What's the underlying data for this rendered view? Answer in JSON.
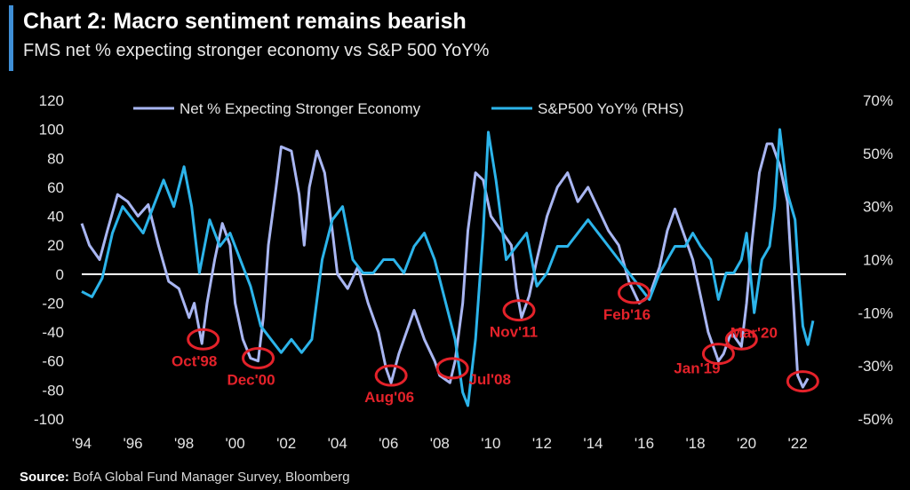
{
  "title": "Chart 2: Macro sentiment remains bearish",
  "subtitle": "FMS net % expecting stronger economy vs S&P 500 YoY%",
  "source_label": "Source:",
  "source_text": " BofA Global Fund Manager Survey, Bloomberg",
  "colors": {
    "background": "#000000",
    "net_expecting": "#a9b6f2",
    "sp500": "#2cb4ea",
    "annotation": "#e4222a",
    "zero_line": "#ffffff",
    "accent": "#3f8fd6"
  },
  "chart_data": {
    "type": "line",
    "x_ticks": [
      "'94",
      "'96",
      "'98",
      "'00",
      "'02",
      "'04",
      "'06",
      "'08",
      "'10",
      "'12",
      "'14",
      "'16",
      "'18",
      "'20",
      "'22"
    ],
    "x_range": [
      1994,
      2022.5
    ],
    "y_left_ticks": [
      "120",
      "100",
      "80",
      "60",
      "40",
      "20",
      "0",
      "-20",
      "-40",
      "-60",
      "-80",
      "-100"
    ],
    "y_left_range": [
      -100,
      120
    ],
    "y_right_ticks": [
      "70%",
      "50%",
      "30%",
      "10%",
      "-10%",
      "-30%",
      "-50%"
    ],
    "y_right_range": [
      -50,
      70
    ],
    "grid": false,
    "legend_position": "top",
    "series": [
      {
        "name": "Net % Expecting Stronger Economy",
        "axis": "left",
        "points": [
          [
            1994.0,
            35
          ],
          [
            1994.3,
            20
          ],
          [
            1994.7,
            10
          ],
          [
            1995.0,
            30
          ],
          [
            1995.4,
            55
          ],
          [
            1995.8,
            50
          ],
          [
            1996.2,
            40
          ],
          [
            1996.6,
            48
          ],
          [
            1997.0,
            20
          ],
          [
            1997.4,
            -5
          ],
          [
            1997.8,
            -10
          ],
          [
            1998.2,
            -30
          ],
          [
            1998.4,
            -20
          ],
          [
            1998.7,
            -48
          ],
          [
            1998.9,
            -20
          ],
          [
            1999.2,
            10
          ],
          [
            1999.5,
            35
          ],
          [
            1999.8,
            20
          ],
          [
            2000.0,
            -20
          ],
          [
            2000.3,
            -45
          ],
          [
            2000.6,
            -58
          ],
          [
            2000.9,
            -60
          ],
          [
            2001.1,
            -30
          ],
          [
            2001.3,
            20
          ],
          [
            2001.6,
            60
          ],
          [
            2001.8,
            88
          ],
          [
            2002.2,
            85
          ],
          [
            2002.5,
            55
          ],
          [
            2002.7,
            20
          ],
          [
            2002.9,
            60
          ],
          [
            2003.2,
            85
          ],
          [
            2003.5,
            70
          ],
          [
            2003.8,
            30
          ],
          [
            2004.0,
            0
          ],
          [
            2004.4,
            -10
          ],
          [
            2004.8,
            5
          ],
          [
            2005.2,
            -20
          ],
          [
            2005.6,
            -40
          ],
          [
            2005.9,
            -65
          ],
          [
            2006.1,
            -75
          ],
          [
            2006.4,
            -55
          ],
          [
            2006.8,
            -35
          ],
          [
            2007.0,
            -25
          ],
          [
            2007.4,
            -45
          ],
          [
            2007.8,
            -60
          ],
          [
            2008.0,
            -70
          ],
          [
            2008.4,
            -75
          ],
          [
            2008.6,
            -60
          ],
          [
            2008.9,
            -20
          ],
          [
            2009.1,
            30
          ],
          [
            2009.4,
            70
          ],
          [
            2009.7,
            65
          ],
          [
            2010.0,
            40
          ],
          [
            2010.4,
            30
          ],
          [
            2010.8,
            20
          ],
          [
            2011.0,
            -10
          ],
          [
            2011.2,
            -30
          ],
          [
            2011.5,
            -15
          ],
          [
            2011.8,
            10
          ],
          [
            2012.2,
            40
          ],
          [
            2012.6,
            60
          ],
          [
            2013.0,
            70
          ],
          [
            2013.4,
            50
          ],
          [
            2013.8,
            60
          ],
          [
            2014.2,
            45
          ],
          [
            2014.6,
            30
          ],
          [
            2015.0,
            20
          ],
          [
            2015.4,
            -5
          ],
          [
            2015.8,
            -20
          ],
          [
            2016.2,
            -15
          ],
          [
            2016.6,
            5
          ],
          [
            2016.9,
            30
          ],
          [
            2017.2,
            45
          ],
          [
            2017.6,
            25
          ],
          [
            2017.9,
            10
          ],
          [
            2018.2,
            -15
          ],
          [
            2018.5,
            -40
          ],
          [
            2018.9,
            -60
          ],
          [
            2019.1,
            -55
          ],
          [
            2019.4,
            -40
          ],
          [
            2019.8,
            -50
          ],
          [
            2020.0,
            -20
          ],
          [
            2020.2,
            20
          ],
          [
            2020.5,
            70
          ],
          [
            2020.8,
            90
          ],
          [
            2021.0,
            90
          ],
          [
            2021.3,
            75
          ],
          [
            2021.6,
            50
          ],
          [
            2021.8,
            -10
          ],
          [
            2022.0,
            -70
          ],
          [
            2022.2,
            -78
          ],
          [
            2022.4,
            -72
          ]
        ]
      },
      {
        "name": "S&P500 YoY% (RHS)",
        "axis": "right",
        "points": [
          [
            1994.0,
            -2
          ],
          [
            1994.4,
            -4
          ],
          [
            1994.8,
            3
          ],
          [
            1995.2,
            20
          ],
          [
            1995.6,
            30
          ],
          [
            1996.0,
            25
          ],
          [
            1996.4,
            20
          ],
          [
            1996.8,
            30
          ],
          [
            1997.2,
            40
          ],
          [
            1997.6,
            30
          ],
          [
            1998.0,
            45
          ],
          [
            1998.3,
            30
          ],
          [
            1998.6,
            5
          ],
          [
            1999.0,
            25
          ],
          [
            1999.4,
            15
          ],
          [
            1999.8,
            20
          ],
          [
            2000.2,
            10
          ],
          [
            2000.6,
            0
          ],
          [
            2001.0,
            -15
          ],
          [
            2001.4,
            -20
          ],
          [
            2001.8,
            -25
          ],
          [
            2002.2,
            -20
          ],
          [
            2002.6,
            -25
          ],
          [
            2003.0,
            -20
          ],
          [
            2003.4,
            10
          ],
          [
            2003.8,
            25
          ],
          [
            2004.2,
            30
          ],
          [
            2004.6,
            10
          ],
          [
            2005.0,
            5
          ],
          [
            2005.4,
            5
          ],
          [
            2005.8,
            10
          ],
          [
            2006.2,
            10
          ],
          [
            2006.6,
            5
          ],
          [
            2007.0,
            15
          ],
          [
            2007.4,
            20
          ],
          [
            2007.8,
            10
          ],
          [
            2008.2,
            -5
          ],
          [
            2008.6,
            -20
          ],
          [
            2008.9,
            -40
          ],
          [
            2009.1,
            -45
          ],
          [
            2009.4,
            -20
          ],
          [
            2009.7,
            20
          ],
          [
            2009.9,
            58
          ],
          [
            2010.2,
            40
          ],
          [
            2010.6,
            10
          ],
          [
            2011.0,
            15
          ],
          [
            2011.4,
            20
          ],
          [
            2011.8,
            0
          ],
          [
            2012.2,
            5
          ],
          [
            2012.6,
            15
          ],
          [
            2013.0,
            15
          ],
          [
            2013.4,
            20
          ],
          [
            2013.8,
            25
          ],
          [
            2014.2,
            20
          ],
          [
            2014.6,
            15
          ],
          [
            2015.0,
            10
          ],
          [
            2015.4,
            5
          ],
          [
            2015.8,
            0
          ],
          [
            2016.2,
            -5
          ],
          [
            2016.6,
            5
          ],
          [
            2016.9,
            10
          ],
          [
            2017.2,
            15
          ],
          [
            2017.6,
            15
          ],
          [
            2017.9,
            20
          ],
          [
            2018.2,
            15
          ],
          [
            2018.6,
            10
          ],
          [
            2018.9,
            -5
          ],
          [
            2019.2,
            5
          ],
          [
            2019.5,
            5
          ],
          [
            2019.8,
            10
          ],
          [
            2020.0,
            20
          ],
          [
            2020.3,
            -10
          ],
          [
            2020.6,
            10
          ],
          [
            2020.9,
            15
          ],
          [
            2021.1,
            30
          ],
          [
            2021.3,
            59
          ],
          [
            2021.6,
            35
          ],
          [
            2021.9,
            25
          ],
          [
            2022.0,
            10
          ],
          [
            2022.2,
            -15
          ],
          [
            2022.4,
            -22
          ],
          [
            2022.6,
            -13
          ]
        ]
      }
    ],
    "annotations": [
      {
        "label": "Oct'98",
        "x": 1998.75,
        "y": -45
      },
      {
        "label": "Dec'00",
        "x": 2000.9,
        "y": -58
      },
      {
        "label": "Aug'06",
        "x": 2006.1,
        "y": -70
      },
      {
        "label": "Jul'08",
        "x": 2008.5,
        "y": -65
      },
      {
        "label": "Nov'11",
        "x": 2011.1,
        "y": -25
      },
      {
        "label": "Feb'16",
        "x": 2015.6,
        "y": -13
      },
      {
        "label": "Jan'19",
        "x": 2018.9,
        "y": -55
      },
      {
        "label": "Mar'20",
        "x": 2019.8,
        "y": -45
      },
      {
        "label": "",
        "x": 2022.2,
        "y": -74
      }
    ]
  }
}
